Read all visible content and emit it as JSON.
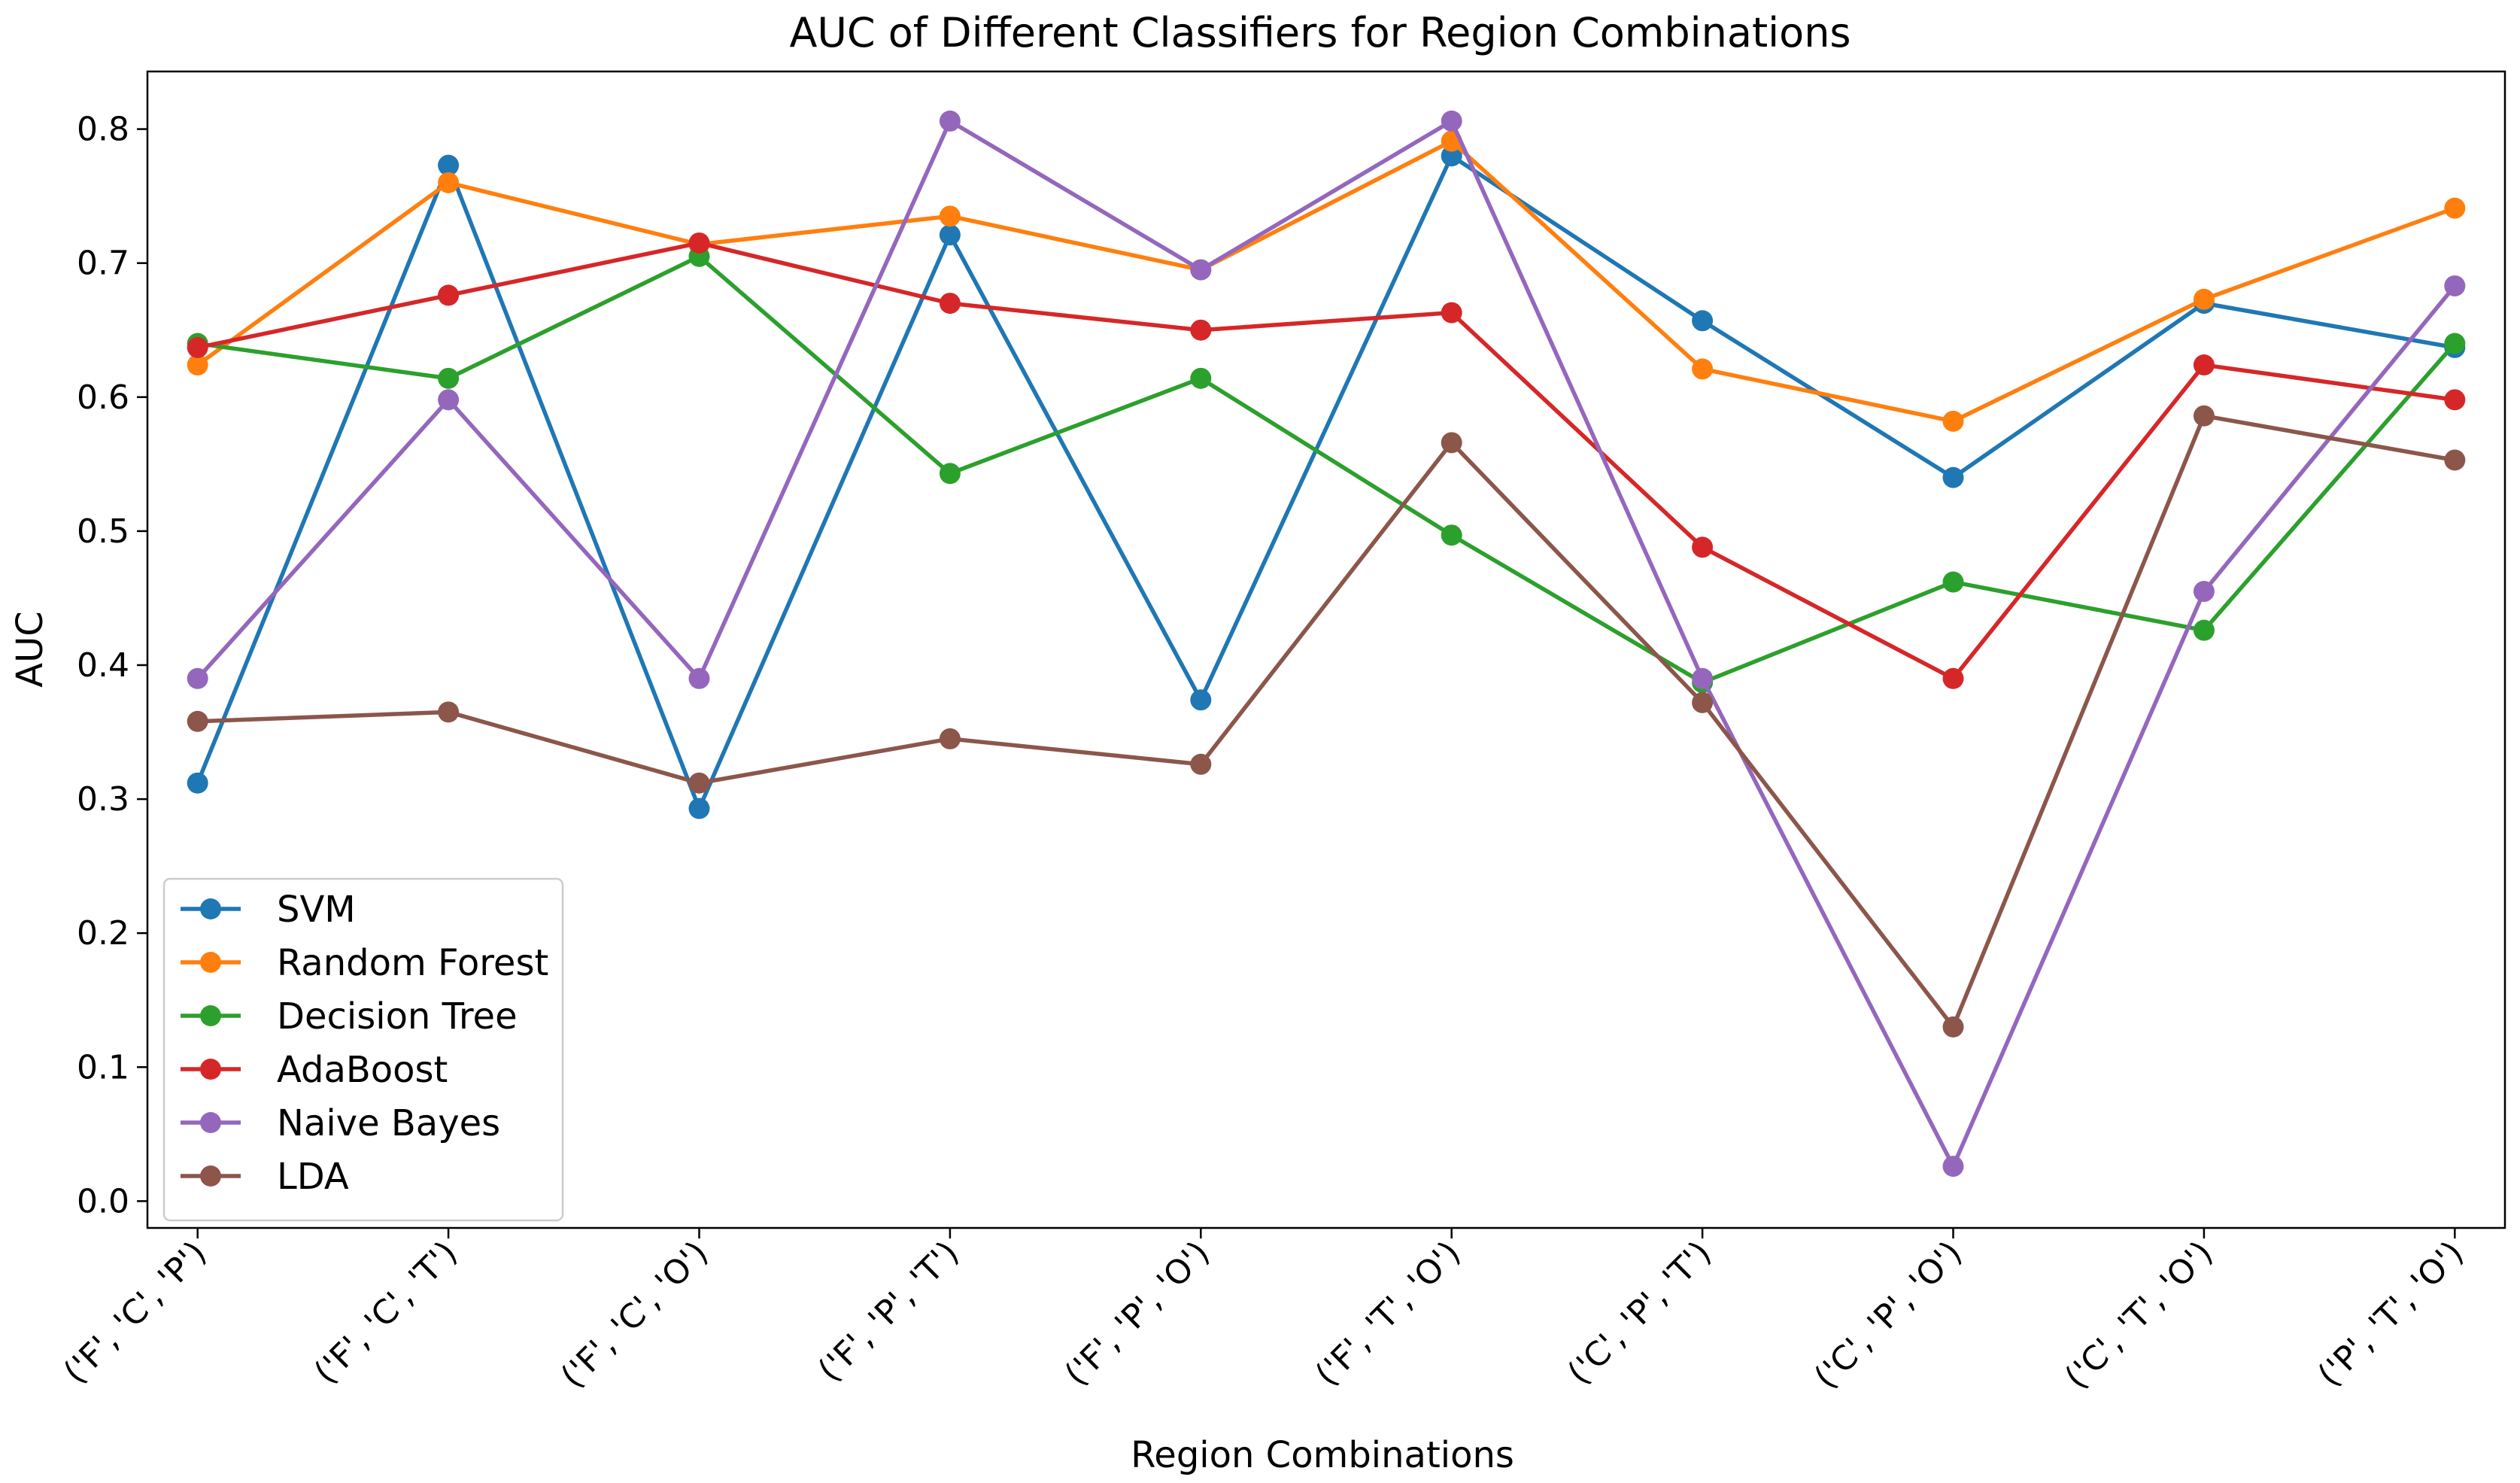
{
  "chart_data": {
    "type": "line",
    "title": "AUC of Different Classifiers for Region Combinations",
    "xlabel": "Region Combinations",
    "ylabel": "AUC",
    "ylim": [
      -0.02,
      0.843
    ],
    "yticks": [
      0.0,
      0.1,
      0.2,
      0.3,
      0.4,
      0.5,
      0.6,
      0.7,
      0.8
    ],
    "ytick_labels": [
      "0.0",
      "0.1",
      "0.2",
      "0.3",
      "0.4",
      "0.5",
      "0.6",
      "0.7",
      "0.8"
    ],
    "grid": false,
    "legend_position": "lower-left",
    "categories": [
      "('F', 'C', 'P')",
      "('F', 'C', 'T')",
      "('F', 'C', 'O')",
      "('F', 'P', 'T')",
      "('F', 'P', 'O')",
      "('F', 'T', 'O')",
      "('C', 'P', 'T')",
      "('C', 'P', 'O')",
      "('C', 'T', 'O')",
      "('P', 'T', 'O')"
    ],
    "series": [
      {
        "name": "SVM",
        "color": "#1f77b4",
        "values": [
          0.312,
          0.773,
          0.293,
          0.721,
          0.374,
          0.78,
          0.657,
          0.54,
          0.67,
          0.637
        ]
      },
      {
        "name": "Random Forest",
        "color": "#ff7f0e",
        "values": [
          0.624,
          0.76,
          0.714,
          0.735,
          0.695,
          0.791,
          0.621,
          0.582,
          0.673,
          0.741
        ]
      },
      {
        "name": "Decision Tree",
        "color": "#2ca02c",
        "values": [
          0.64,
          0.614,
          0.705,
          0.543,
          0.614,
          0.497,
          0.387,
          0.462,
          0.426,
          0.64
        ]
      },
      {
        "name": "AdaBoost",
        "color": "#d62728",
        "values": [
          0.637,
          0.676,
          0.715,
          0.67,
          0.65,
          0.663,
          0.488,
          0.39,
          0.624,
          0.598
        ]
      },
      {
        "name": "Naive Bayes",
        "color": "#9467bd",
        "values": [
          0.39,
          0.598,
          0.39,
          0.806,
          0.695,
          0.806,
          0.39,
          0.026,
          0.455,
          0.683
        ]
      },
      {
        "name": "LDA",
        "color": "#8c564b",
        "values": [
          0.358,
          0.365,
          0.312,
          0.345,
          0.326,
          0.566,
          0.372,
          0.13,
          0.586,
          0.553
        ]
      }
    ]
  }
}
